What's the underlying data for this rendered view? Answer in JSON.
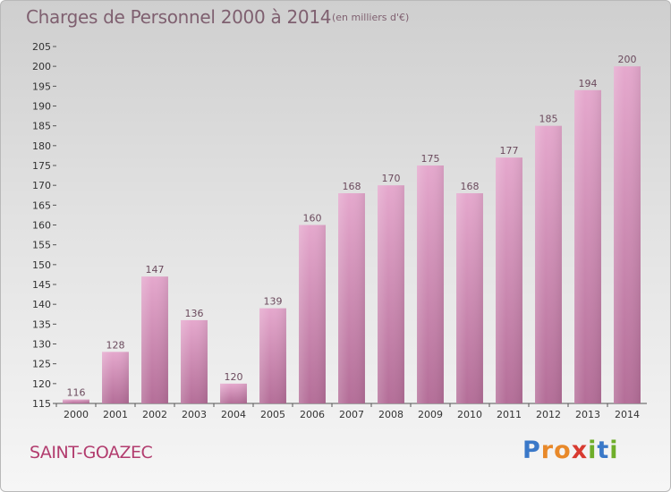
{
  "title": "Charges de Personnel 2000 à 2014",
  "subtitle": "(en milliers d'€)",
  "commune": "SAINT-GOAZEC",
  "brand": {
    "letters": [
      "P",
      "r",
      "o",
      "x",
      "i",
      "t",
      "i"
    ],
    "colors": [
      "#3a78c8",
      "#e8892a",
      "#e8892a",
      "#d83a30",
      "#6fae2a",
      "#3a78c8",
      "#6fae2a"
    ]
  },
  "colors": {
    "bar_light": "#e5a8cd",
    "bar_dark": "#b46e98",
    "label": "#6b4a5d",
    "axis": "#555555"
  },
  "chart_data": {
    "type": "bar",
    "categories": [
      "2000",
      "2001",
      "2002",
      "2003",
      "2004",
      "2005",
      "2006",
      "2007",
      "2008",
      "2009",
      "2010",
      "2011",
      "2012",
      "2013",
      "2014"
    ],
    "values": [
      116,
      128,
      147,
      136,
      120,
      139,
      160,
      168,
      170,
      175,
      168,
      177,
      185,
      194,
      200
    ],
    "ylim": [
      115,
      205
    ],
    "yticks": [
      115,
      120,
      125,
      130,
      135,
      140,
      145,
      150,
      155,
      160,
      165,
      170,
      175,
      180,
      185,
      190,
      195,
      200,
      205
    ],
    "grid": false
  }
}
